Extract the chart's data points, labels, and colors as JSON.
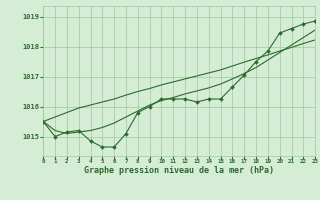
{
  "x": [
    0,
    1,
    2,
    3,
    4,
    5,
    6,
    7,
    8,
    9,
    10,
    11,
    12,
    13,
    14,
    15,
    16,
    17,
    18,
    19,
    20,
    21,
    22,
    23
  ],
  "y_actual": [
    1015.5,
    1015.0,
    1015.15,
    1015.2,
    1014.85,
    1014.65,
    1014.65,
    1015.1,
    1015.8,
    1016.0,
    1016.25,
    1016.25,
    1016.25,
    1016.15,
    1016.25,
    1016.25,
    1016.65,
    1017.05,
    1017.5,
    1017.85,
    1018.45,
    1018.6,
    1018.75,
    1018.85
  ],
  "y_straight": [
    1015.5,
    1015.65,
    1015.8,
    1015.95,
    1016.05,
    1016.15,
    1016.25,
    1016.38,
    1016.5,
    1016.6,
    1016.72,
    1016.82,
    1016.92,
    1017.02,
    1017.12,
    1017.22,
    1017.35,
    1017.48,
    1017.6,
    1017.72,
    1017.85,
    1017.97,
    1018.1,
    1018.22
  ],
  "y_curve": [
    1015.5,
    1015.2,
    1015.1,
    1015.15,
    1015.2,
    1015.3,
    1015.45,
    1015.65,
    1015.85,
    1016.05,
    1016.2,
    1016.3,
    1016.42,
    1016.52,
    1016.62,
    1016.75,
    1016.92,
    1017.1,
    1017.3,
    1017.55,
    1017.8,
    1018.05,
    1018.3,
    1018.55
  ],
  "line_color": "#2d6a2d",
  "bg_color": "#d4edd4",
  "grid_color": "#9fc89f",
  "xlabel": "Graphe pression niveau de la mer (hPa)",
  "ylim": [
    1014.35,
    1019.35
  ],
  "xlim": [
    0,
    23
  ],
  "yticks": [
    1015,
    1016,
    1017,
    1018,
    1019
  ],
  "xtick_labels": [
    "0",
    "1",
    "2",
    "3",
    "4",
    "5",
    "6",
    "7",
    "8",
    "9",
    "10",
    "11",
    "12",
    "13",
    "14",
    "15",
    "16",
    "17",
    "18",
    "19",
    "20",
    "21",
    "22",
    "23"
  ]
}
